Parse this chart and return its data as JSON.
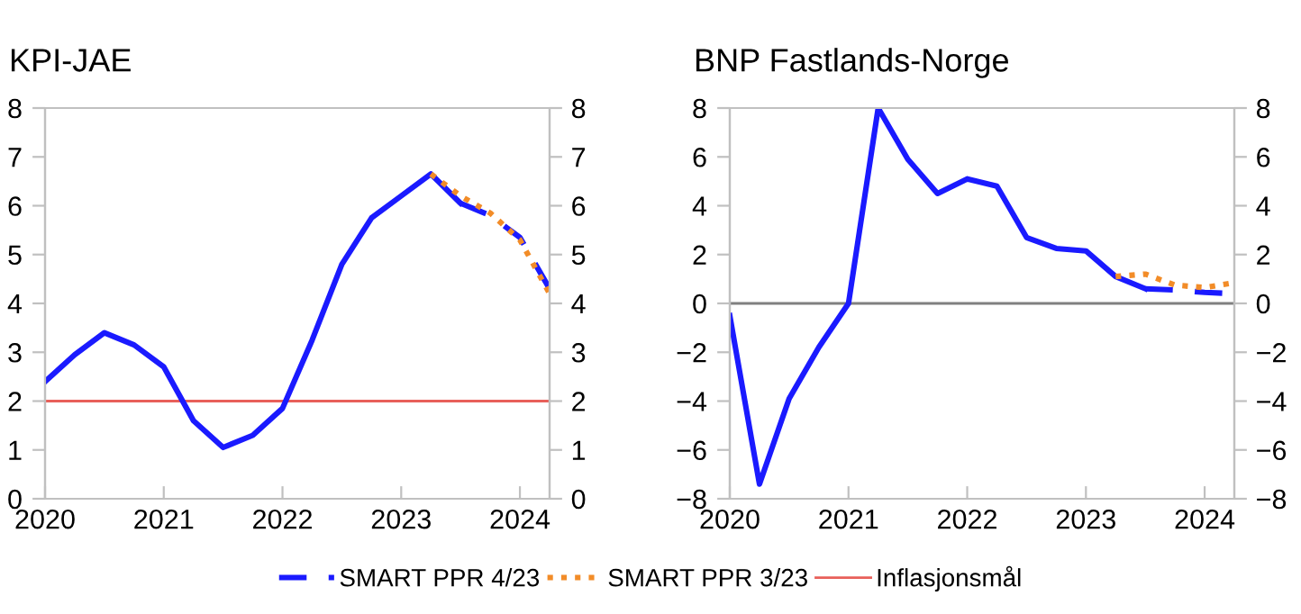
{
  "chart_data": [
    {
      "type": "line",
      "title": "KPI-JAE",
      "xlim": [
        2020,
        2024.25
      ],
      "xticks": [
        2020,
        2021,
        2022,
        2023,
        2024
      ],
      "ylim": [
        0,
        8
      ],
      "yticks": [
        0,
        1,
        2,
        3,
        4,
        5,
        6,
        7,
        8
      ],
      "y2lim": [
        0,
        8
      ],
      "y2ticks": [
        0,
        1,
        2,
        3,
        4,
        5,
        6,
        7,
        8
      ],
      "grid": false,
      "legend": "bottom",
      "marker": "none",
      "series": [
        {
          "color": "#1a1aff",
          "line_style": "solid",
          "x": [
            2020,
            2020.25,
            2020.5,
            2020.75,
            2021,
            2021.25,
            2021.5,
            2021.75,
            2022,
            2022.25,
            2022.5,
            2022.75,
            2023,
            2023.25,
            2023.5
          ],
          "values": [
            2.4,
            2.95,
            3.4,
            3.15,
            2.7,
            1.6,
            1.05,
            1.3,
            1.85,
            3.25,
            4.8,
            5.75,
            6.2,
            6.65,
            6.05
          ]
        },
        {
          "name": "SMART PPR 4/23",
          "color": "#1a1aff",
          "line_style": "dashed",
          "x": [
            2023.5,
            2023.75,
            2024,
            2024.25
          ],
          "values": [
            6.05,
            5.8,
            5.35,
            4.3
          ]
        },
        {
          "name": "SMART PPR 3/23",
          "color": "#f28c28",
          "line_style": "dotted",
          "x": [
            2023.25,
            2023.5,
            2023.75,
            2024,
            2024.25
          ],
          "values": [
            6.65,
            6.2,
            5.85,
            5.3,
            4.2
          ]
        }
      ],
      "ref_lines": [
        {
          "axis": "y",
          "value": 2,
          "label": "Inflasjonsmål",
          "color": "#e8605a"
        }
      ]
    },
    {
      "type": "line",
      "title": "BNP Fastlands-Norge",
      "xlim": [
        2020,
        2024.25
      ],
      "xticks": [
        2020,
        2021,
        2022,
        2023,
        2024
      ],
      "ylim": [
        -8,
        8
      ],
      "yticks": [
        {
          "value": -8,
          "label": "−8"
        },
        {
          "value": -6,
          "label": "−6"
        },
        {
          "value": -4,
          "label": "−4"
        },
        {
          "value": -2,
          "label": "−2"
        },
        0,
        2,
        4,
        6,
        8
      ],
      "y2lim": [
        -8,
        8
      ],
      "y2ticks": [
        {
          "value": -8,
          "label": "−8"
        },
        {
          "value": -6,
          "label": "−6"
        },
        {
          "value": -4,
          "label": "−4"
        },
        {
          "value": -2,
          "label": "−2"
        },
        0,
        2,
        4,
        6,
        8
      ],
      "grid": false,
      "legend": "bottom",
      "marker": "none",
      "series": [
        {
          "color": "#1a1aff",
          "line_style": "solid",
          "x": [
            2020,
            2020.25,
            2020.5,
            2020.75,
            2021,
            2021.25,
            2021.5,
            2021.75,
            2022,
            2022.25,
            2022.5,
            2022.75,
            2023,
            2023.25,
            2023.5
          ],
          "values": [
            -0.5,
            -7.4,
            -3.9,
            -1.8,
            0.0,
            8.0,
            5.9,
            4.5,
            5.1,
            4.8,
            2.7,
            2.25,
            2.15,
            1.1,
            0.6
          ]
        },
        {
          "name": "SMART PPR 4/23",
          "color": "#1a1aff",
          "line_style": "dashed",
          "x": [
            2023.5,
            2023.75,
            2024,
            2024.25
          ],
          "values": [
            0.6,
            0.55,
            0.45,
            0.4
          ]
        },
        {
          "name": "SMART PPR 3/23",
          "color": "#f28c28",
          "line_style": "dotted",
          "x": [
            2023.25,
            2023.5,
            2023.75,
            2024,
            2024.25
          ],
          "values": [
            1.1,
            1.2,
            0.75,
            0.65,
            0.85
          ]
        }
      ],
      "ref_lines": [
        {
          "axis": "y",
          "value": 0,
          "color": "#808080"
        }
      ]
    }
  ]
}
